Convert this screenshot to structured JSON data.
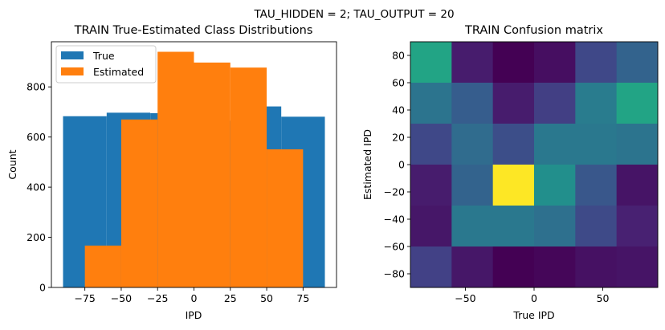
{
  "suptitle": "TAU_HIDDEN = 2; TAU_OUTPUT = 20",
  "chart_data": [
    {
      "type": "bar",
      "title": "TRAIN True-Estimated Class Distributions",
      "xlabel": "IPD",
      "ylabel": "Count",
      "xlim": [
        -98,
        98
      ],
      "ylim": [
        0,
        980
      ],
      "xticks": [
        -75,
        -50,
        -25,
        0,
        25,
        50,
        75
      ],
      "xtick_labels": [
        "−75",
        "−50",
        "−25",
        "0",
        "25",
        "50",
        "75"
      ],
      "yticks": [
        0,
        200,
        400,
        600,
        800
      ],
      "ytick_labels": [
        "0",
        "200",
        "400",
        "600",
        "800"
      ],
      "legend": {
        "position": "top-left",
        "entries": [
          "True",
          "Estimated"
        ]
      },
      "series": [
        {
          "name": "True",
          "color": "#1f77b4",
          "bins": [
            [
              -90,
              -60
            ],
            [
              -60,
              -30
            ],
            [
              -30,
              0
            ],
            [
              0,
              30
            ],
            [
              30,
              60
            ],
            [
              60,
              90
            ]
          ],
          "values": [
            683,
            697,
            695,
            665,
            722,
            681
          ]
        },
        {
          "name": "Estimated",
          "color": "#ff7f0e",
          "bins": [
            [
              -75,
              -50
            ],
            [
              -50,
              -25
            ],
            [
              -25,
              0
            ],
            [
              0,
              25
            ],
            [
              25,
              50
            ],
            [
              50,
              75
            ]
          ],
          "values": [
            167,
            670,
            940,
            897,
            877,
            551
          ]
        }
      ]
    },
    {
      "type": "heatmap",
      "title": "TRAIN Confusion matrix",
      "xlabel": "True IPD",
      "ylabel": "Estimated IPD",
      "xlim": [
        -90,
        90
      ],
      "ylim": [
        -90,
        90
      ],
      "xticks": [
        -50,
        0,
        50
      ],
      "xtick_labels": [
        "−50",
        "0",
        "50"
      ],
      "yticks": [
        -80,
        -60,
        -40,
        -20,
        0,
        20,
        40,
        60,
        80
      ],
      "ytick_labels": [
        "−80",
        "−60",
        "−40",
        "−20",
        "0",
        "20",
        "40",
        "60",
        "80"
      ],
      "x_edges": [
        -90,
        -60,
        -30,
        0,
        30,
        60,
        90
      ],
      "y_edges": [
        90,
        60,
        30,
        0,
        -30,
        -60,
        -90
      ],
      "colormap": "viridis",
      "values_normalized": [
        [
          0.73,
          0.1,
          0.0,
          0.05,
          0.27,
          0.4
        ],
        [
          0.48,
          0.37,
          0.1,
          0.23,
          0.52,
          0.73
        ],
        [
          0.27,
          0.44,
          0.3,
          0.5,
          0.5,
          0.48
        ],
        [
          0.1,
          0.4,
          1.0,
          0.62,
          0.34,
          0.07
        ],
        [
          0.08,
          0.5,
          0.5,
          0.46,
          0.28,
          0.12
        ],
        [
          0.24,
          0.08,
          0.0,
          0.02,
          0.06,
          0.07
        ]
      ]
    }
  ]
}
